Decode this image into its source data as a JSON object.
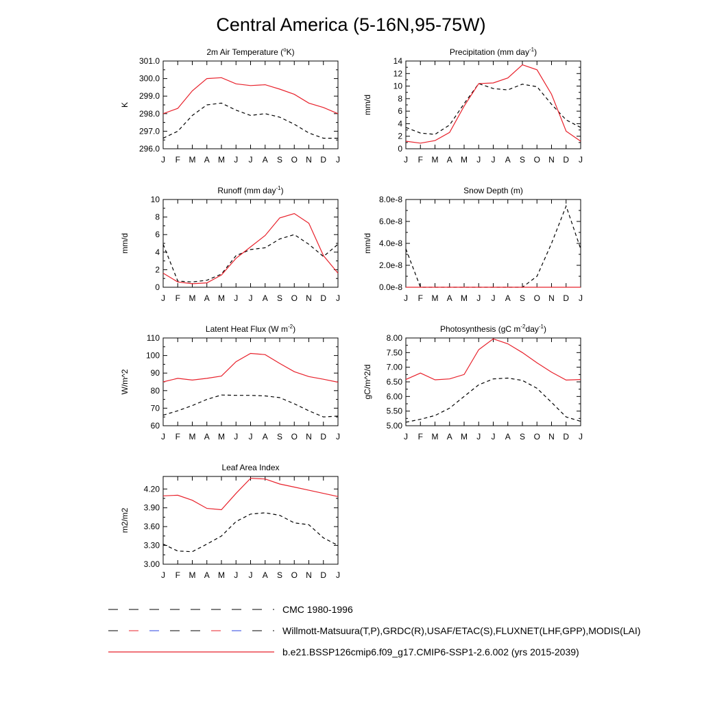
{
  "figure": {
    "title": "Central America (5-16N,95-75W)"
  },
  "months": [
    "J",
    "F",
    "M",
    "A",
    "M",
    "J",
    "J",
    "A",
    "S",
    "O",
    "N",
    "D",
    "J"
  ],
  "legend": [
    {
      "label": "CMC 1980-1996",
      "style": "dashed",
      "color": "#000000"
    },
    {
      "label": "Willmott-Matsuura(T,P),GRDC(R),USAF/ETAC(S),FLUXNET(LHF,GPP),MODIS(LAI)",
      "style": "dashed-multicolor",
      "color": "#000000"
    },
    {
      "label": "b.e21.BSSP126cmip6.f09_g17.CMIP6-SSP1-2.6.002 (yrs 2015-2039)",
      "style": "solid",
      "color": "#e8202a"
    }
  ],
  "chart_data": [
    {
      "type": "line",
      "title": "2m Air Temperature (",
      "title_sup": "o",
      "title_after": "K)",
      "ylabel": "K",
      "xlabel": "",
      "ylim": [
        296.0,
        301.0
      ],
      "yticks": [
        296.0,
        297.0,
        298.0,
        299.0,
        300.0,
        301.0
      ],
      "ytick_labels": [
        "296.0",
        "297.0",
        "298.0",
        "299.0",
        "300.0",
        "301.0"
      ],
      "series": [
        {
          "name": "obs",
          "style": "dashed",
          "color": "#000000",
          "values": [
            296.6,
            297.0,
            297.9,
            298.5,
            298.6,
            298.2,
            297.9,
            298.0,
            297.8,
            297.4,
            296.9,
            296.6,
            296.6
          ]
        },
        {
          "name": "model",
          "style": "solid",
          "color": "#e8202a",
          "values": [
            298.0,
            298.3,
            299.3,
            300.0,
            300.05,
            299.7,
            299.6,
            299.65,
            299.4,
            299.1,
            298.6,
            298.35,
            298.0
          ]
        }
      ]
    },
    {
      "type": "line",
      "title": "Precipitation (mm day",
      "title_sup": "-1",
      "title_after": ")",
      "ylabel": "mm/d",
      "xlabel": "",
      "ylim": [
        0,
        14
      ],
      "yticks": [
        0,
        2,
        4,
        6,
        8,
        10,
        12,
        14
      ],
      "ytick_labels": [
        "0",
        "2",
        "4",
        "6",
        "8",
        "10",
        "12",
        "14"
      ],
      "series": [
        {
          "name": "obs",
          "style": "dashed",
          "color": "#000000",
          "values": [
            3.4,
            2.5,
            2.3,
            3.8,
            7.2,
            10.4,
            9.6,
            9.4,
            10.3,
            9.9,
            7.1,
            4.6,
            3.4
          ]
        },
        {
          "name": "model",
          "style": "solid",
          "color": "#e8202a",
          "values": [
            1.2,
            0.9,
            1.3,
            2.6,
            6.8,
            10.4,
            10.5,
            11.3,
            13.4,
            12.6,
            8.7,
            2.8,
            1.2
          ]
        }
      ]
    },
    {
      "type": "line",
      "title": "Runoff (mm day",
      "title_sup": "-1",
      "title_after": ")",
      "ylabel": "mm/d",
      "xlabel": "",
      "ylim": [
        0,
        10
      ],
      "yticks": [
        0,
        2,
        4,
        6,
        8,
        10
      ],
      "ytick_labels": [
        "0",
        "2",
        "4",
        "6",
        "8",
        "10"
      ],
      "series": [
        {
          "name": "obs",
          "style": "dashed",
          "color": "#000000",
          "values": [
            4.9,
            0.7,
            0.6,
            0.8,
            1.5,
            3.6,
            4.3,
            4.5,
            5.5,
            6.0,
            4.9,
            3.5,
            4.9
          ]
        },
        {
          "name": "model",
          "style": "solid",
          "color": "#e8202a",
          "values": [
            1.6,
            0.6,
            0.4,
            0.5,
            1.4,
            3.3,
            4.6,
            5.9,
            7.9,
            8.4,
            7.3,
            3.6,
            1.6
          ]
        }
      ]
    },
    {
      "type": "line",
      "title": "Snow Depth (m)",
      "title_sup": "",
      "title_after": "",
      "ylabel": "mm/d",
      "xlabel": "",
      "ylim": [
        0,
        8e-08
      ],
      "yticks": [
        0,
        2e-08,
        4e-08,
        6e-08,
        8e-08
      ],
      "ytick_labels": [
        "0.0e-8",
        "2.0e-8",
        "4.0e-8",
        "6.0e-8",
        "8.0e-8"
      ],
      "series": [
        {
          "name": "obs",
          "style": "dashed",
          "color": "#000000",
          "values": [
            3.5e-08,
            0,
            0,
            0,
            0,
            0,
            0,
            0,
            0,
            1e-08,
            4e-08,
            7.4e-08,
            3.5e-08
          ]
        },
        {
          "name": "model",
          "style": "solid",
          "color": "#e8202a",
          "values": [
            0,
            0,
            0,
            0,
            0,
            0,
            0,
            0,
            0,
            0,
            0,
            0,
            0
          ]
        }
      ]
    },
    {
      "type": "line",
      "title": "Latent Heat Flux (W m",
      "title_sup": "-2",
      "title_after": ")",
      "ylabel": "W/m^2",
      "xlabel": "",
      "ylim": [
        60,
        110
      ],
      "yticks": [
        60,
        70,
        80,
        90,
        100,
        110
      ],
      "ytick_labels": [
        "60",
        "70",
        "80",
        "90",
        "100",
        "110"
      ],
      "series": [
        {
          "name": "obs",
          "style": "dashed",
          "color": "#000000",
          "values": [
            66,
            68.5,
            71.5,
            75,
            77.5,
            77.3,
            77.3,
            77,
            76,
            72.5,
            68.5,
            65,
            65.5
          ]
        },
        {
          "name": "model",
          "style": "solid",
          "color": "#e8202a",
          "values": [
            85,
            87,
            86,
            87,
            88.3,
            96.5,
            101.2,
            100.5,
            95.5,
            90.8,
            88,
            86.5,
            84.8
          ]
        }
      ]
    },
    {
      "type": "line",
      "title": "Photosynthesis (gC m",
      "title_sup": "-2",
      "title_after": "day",
      "title_sup2": "-1",
      "title_after2": ")",
      "ylabel": "gC/m^2/d",
      "xlabel": "",
      "ylim": [
        5.0,
        8.0
      ],
      "yticks": [
        5.0,
        5.5,
        6.0,
        6.5,
        7.0,
        7.5,
        8.0
      ],
      "ytick_labels": [
        "5.00",
        "5.50",
        "6.00",
        "6.50",
        "7.00",
        "7.50",
        "8.00"
      ],
      "series": [
        {
          "name": "obs",
          "style": "dashed",
          "color": "#000000",
          "values": [
            5.12,
            5.22,
            5.35,
            5.6,
            6.0,
            6.4,
            6.6,
            6.63,
            6.55,
            6.28,
            5.8,
            5.3,
            5.15
          ]
        },
        {
          "name": "model",
          "style": "solid",
          "color": "#e8202a",
          "values": [
            6.58,
            6.8,
            6.57,
            6.6,
            6.75,
            7.6,
            7.97,
            7.8,
            7.5,
            7.15,
            6.83,
            6.56,
            6.58
          ]
        }
      ]
    },
    {
      "type": "line",
      "title": "Leaf Area Index",
      "title_sup": "",
      "title_after": "",
      "ylabel": "m2/m2",
      "xlabel": "",
      "ylim": [
        3.0,
        4.4
      ],
      "yticks": [
        3.0,
        3.3,
        3.6,
        3.9,
        4.2
      ],
      "ytick_labels": [
        "3.00",
        "3.30",
        "3.60",
        "3.90",
        "4.20"
      ],
      "series": [
        {
          "name": "obs",
          "style": "dashed",
          "color": "#000000",
          "values": [
            3.32,
            3.21,
            3.2,
            3.32,
            3.45,
            3.68,
            3.8,
            3.82,
            3.78,
            3.66,
            3.63,
            3.42,
            3.3
          ]
        },
        {
          "name": "model",
          "style": "solid",
          "color": "#e8202a",
          "values": [
            4.09,
            4.1,
            4.02,
            3.89,
            3.87,
            4.13,
            4.37,
            4.36,
            4.28,
            4.23,
            4.18,
            4.13,
            4.08
          ]
        }
      ]
    }
  ]
}
